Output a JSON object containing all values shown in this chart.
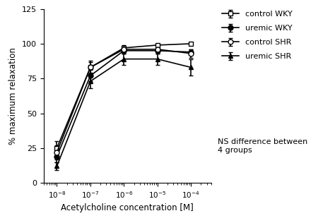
{
  "x_values": [
    1e-08,
    1e-07,
    1e-06,
    1e-05,
    0.0001
  ],
  "control_WKY": [
    25,
    83,
    97,
    99,
    100
  ],
  "control_WKY_err": [
    5,
    4,
    2,
    1,
    1
  ],
  "uremic_WKY": [
    19,
    77,
    95,
    95,
    94
  ],
  "uremic_WKY_err": [
    4,
    4,
    2,
    2,
    2
  ],
  "control_SHR": [
    22,
    83,
    96,
    96,
    93
  ],
  "control_SHR_err": [
    5,
    5,
    2,
    2,
    3
  ],
  "uremic_SHR": [
    12,
    73,
    89,
    89,
    83
  ],
  "uremic_SHR_err": [
    3,
    5,
    4,
    4,
    6
  ],
  "ylim": [
    0,
    125
  ],
  "yticks": [
    0,
    25,
    50,
    75,
    100,
    125
  ],
  "ylabel": "% maximum relaxation",
  "xlabel": "Acetylcholine concentration [M]",
  "legend_labels": [
    "control WKY",
    "uremic WKY",
    "control SHR",
    "uremic SHR"
  ],
  "annotation": "NS difference between\n4 groups",
  "line_color": "black",
  "bg_color": "white"
}
